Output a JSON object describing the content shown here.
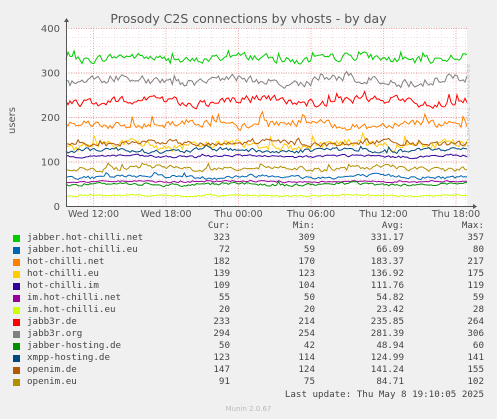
{
  "chart_data": {
    "type": "line",
    "title": "Prosody C2S connections by vhosts - by day",
    "ylabel": "users",
    "xlabel": "",
    "ylim": [
      0,
      400
    ],
    "y_ticks": [
      "0",
      "100",
      "200",
      "300",
      "400"
    ],
    "x_ticks": [
      "Wed 12:00",
      "Wed 18:00",
      "Thu 00:00",
      "Thu 06:00",
      "Thu 12:00",
      "Thu 18:00"
    ],
    "grid": true,
    "legend_columns": [
      "Cur:",
      "Min:",
      "Avg:",
      "Max:"
    ],
    "series": [
      {
        "name": "jabber.hot-chilli.net",
        "color": "#00cc00",
        "cur": "323",
        "min": "309",
        "avg": "331.17",
        "max": "357"
      },
      {
        "name": "jabber.hot-chilli.eu",
        "color": "#0066b3",
        "cur": "72",
        "min": "59",
        "avg": "66.09",
        "max": "80"
      },
      {
        "name": "hot-chilli.net",
        "color": "#ff8000",
        "cur": "182",
        "min": "170",
        "avg": "183.37",
        "max": "217"
      },
      {
        "name": "hot-chilli.eu",
        "color": "#ffcc00",
        "cur": "139",
        "min": "123",
        "avg": "136.92",
        "max": "175"
      },
      {
        "name": "hot-chilli.im",
        "color": "#330099",
        "cur": "109",
        "min": "104",
        "avg": "111.76",
        "max": "119"
      },
      {
        "name": "im.hot-chilli.net",
        "color": "#990099",
        "cur": "55",
        "min": "50",
        "avg": "54.82",
        "max": "59"
      },
      {
        "name": "im.hot-chilli.eu",
        "color": "#ccff00",
        "cur": "20",
        "min": "20",
        "avg": "23.42",
        "max": "28"
      },
      {
        "name": "jabb3r.de",
        "color": "#ff0000",
        "cur": "233",
        "min": "214",
        "avg": "235.85",
        "max": "264"
      },
      {
        "name": "jabb3r.org",
        "color": "#808080",
        "cur": "294",
        "min": "254",
        "avg": "281.39",
        "max": "306"
      },
      {
        "name": "jabber-hosting.de",
        "color": "#008f00",
        "cur": "50",
        "min": "42",
        "avg": "48.94",
        "max": "60"
      },
      {
        "name": "xmpp-hosting.de",
        "color": "#00487d",
        "cur": "123",
        "min": "114",
        "avg": "124.99",
        "max": "141"
      },
      {
        "name": "openim.de",
        "color": "#b35a00",
        "cur": "147",
        "min": "124",
        "avg": "141.24",
        "max": "155"
      },
      {
        "name": "openim.eu",
        "color": "#b38f00",
        "cur": "91",
        "min": "75",
        "avg": "84.71",
        "max": "102"
      }
    ]
  },
  "watermark": "RRDTOOL / TOBI OETIKER",
  "last_update": "Last update: Thu May  8 19:10:05 2025",
  "version": "Munin 2.0.67"
}
